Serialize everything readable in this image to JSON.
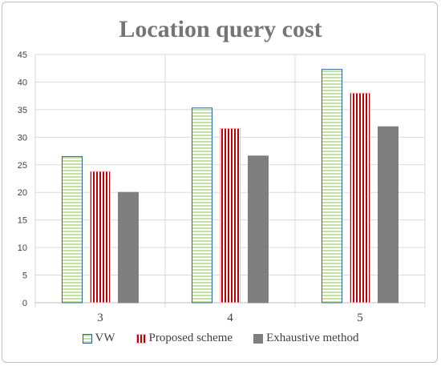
{
  "chart_data": {
    "type": "bar",
    "title": "Location query cost",
    "xlabel": "",
    "ylabel": "",
    "categories": [
      "3",
      "4",
      "5"
    ],
    "ylim": [
      0,
      45
    ],
    "yticks": [
      "0",
      "5",
      "10",
      "15",
      "20",
      "25",
      "30",
      "35",
      "40",
      "45"
    ],
    "grid": "horizontal and vertical",
    "legend_position": "bottom",
    "series": [
      {
        "name": "VW",
        "values": [
          26.5,
          35.3,
          42.3
        ],
        "pattern": "horizontal-stripes",
        "fill": "#c5e0a3",
        "stripe": "#ffffff",
        "border": "#2e5fa3"
      },
      {
        "name": "Proposed scheme",
        "values": [
          23.8,
          31.6,
          38.0
        ],
        "pattern": "vertical-stripes",
        "fill": "#c00000",
        "stripe": "#ffffff",
        "border": "#ffb3c6"
      },
      {
        "name": "Exhaustive method",
        "values": [
          20.0,
          26.6,
          31.9
        ],
        "pattern": "solid",
        "fill": "#7f7f7f",
        "stripe": "#7f7f7f",
        "border": "#7f7f7f"
      }
    ]
  }
}
